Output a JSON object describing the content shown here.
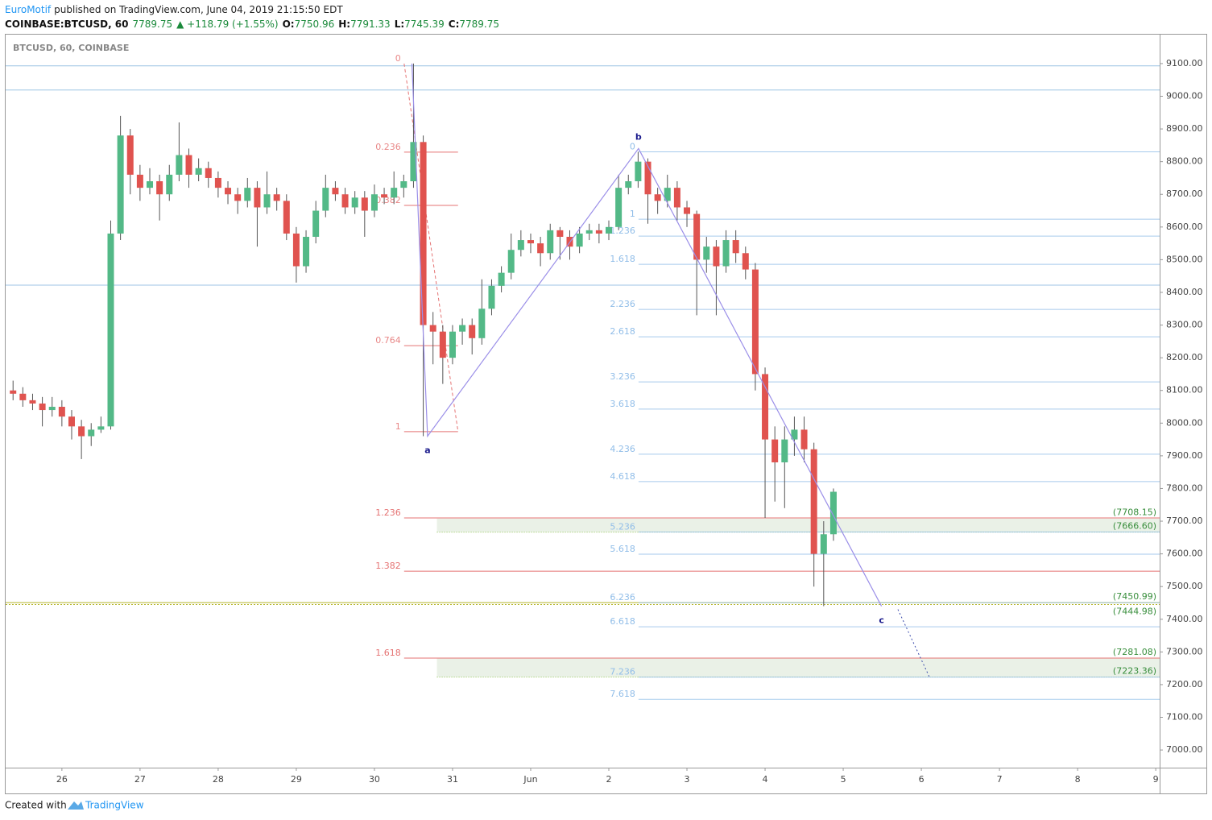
{
  "header": {
    "author": "EuroMotif",
    "published": "published on TradingView.com, June 04, 2019 21:15:50 EDT",
    "symbol": "COINBASE:BTCUSD, 60",
    "last": "7789.75",
    "change": "▲ +118.79 (+1.55%)",
    "ohlc": [
      {
        "key": "O:",
        "value": "7750.96"
      },
      {
        "key": "H:",
        "value": "7791.33"
      },
      {
        "key": "L:",
        "value": "7745.39"
      },
      {
        "key": "C:",
        "value": "7789.75"
      }
    ]
  },
  "footer": {
    "created": "Created with",
    "brand": "TradingView"
  },
  "chart_data": {
    "type": "candlestick",
    "legend": "BTCUSD, 60, COINBASE",
    "up_color": "#53b987",
    "down_color": "#e0534f",
    "xlim": [
      25.28,
      40.05
    ],
    "ylim": [
      6946,
      9191
    ],
    "xticks": [
      26,
      27,
      28,
      29,
      30,
      31,
      {
        "value": 32,
        "label": "Jun"
      },
      {
        "value": 33,
        "label": "2"
      },
      {
        "value": 34,
        "label": "3"
      },
      {
        "value": 35,
        "label": "4"
      },
      {
        "value": 36,
        "label": "5"
      },
      {
        "value": 37,
        "label": "6"
      },
      {
        "value": 38,
        "label": "7"
      },
      {
        "value": 39,
        "label": "8"
      },
      {
        "value": 40,
        "label": "9"
      }
    ],
    "yticks": [
      {
        "value": 7000,
        "label": "7000.00"
      },
      {
        "value": 7100,
        "label": "7100.00"
      },
      {
        "value": 7200,
        "label": "7200.00"
      },
      {
        "value": 7300,
        "label": "7300.00"
      },
      {
        "value": 7400,
        "label": "7400.00"
      },
      {
        "value": 7500,
        "label": "7500.00"
      },
      {
        "value": 7600,
        "label": "7600.00"
      },
      {
        "value": 7700,
        "label": "7700.00"
      },
      {
        "value": 7800,
        "label": "7800.00"
      },
      {
        "value": 7900,
        "label": "7900.00"
      },
      {
        "value": 8000,
        "label": "8000.00"
      },
      {
        "value": 8100,
        "label": "8100.00"
      },
      {
        "value": 8200,
        "label": "8200.00"
      },
      {
        "value": 8300,
        "label": "8300.00"
      },
      {
        "value": 8400,
        "label": "8400.00"
      },
      {
        "value": 8500,
        "label": "8500.00"
      },
      {
        "value": 8600,
        "label": "8600.00"
      },
      {
        "value": 8700,
        "label": "8700.00"
      },
      {
        "value": 8800,
        "label": "8800.00"
      },
      {
        "value": 8900,
        "label": "8900.00"
      },
      {
        "value": 9000,
        "label": "9000.00"
      },
      {
        "value": 9100,
        "label": "9100.00"
      }
    ],
    "grid": false,
    "x": [
      25.375,
      25.5,
      25.625,
      25.75,
      25.875,
      26.0,
      26.125,
      26.25,
      26.375,
      26.5,
      26.625,
      26.75,
      26.875,
      27.0,
      27.125,
      27.25,
      27.375,
      27.5,
      27.625,
      27.75,
      27.875,
      28.0,
      28.125,
      28.25,
      28.375,
      28.5,
      28.625,
      28.75,
      28.875,
      29.0,
      29.125,
      29.25,
      29.375,
      29.5,
      29.625,
      29.75,
      29.875,
      30.0,
      30.125,
      30.25,
      30.375,
      30.5,
      30.625,
      30.75,
      30.875,
      31.0,
      31.125,
      31.25,
      31.375,
      31.5,
      31.625,
      31.75,
      31.875,
      32.0,
      32.125,
      32.25,
      32.375,
      32.5,
      32.625,
      32.75,
      32.875,
      33.0,
      33.125,
      33.25,
      33.375,
      33.5,
      33.625,
      33.75,
      33.875,
      34.0,
      34.125,
      34.25,
      34.375,
      34.5,
      34.625,
      34.75,
      34.875,
      35.0,
      35.125,
      35.25,
      35.375,
      35.5,
      35.625,
      35.75,
      35.875
    ],
    "candles": [
      [
        8100,
        8130,
        8070,
        8090
      ],
      [
        8090,
        8110,
        8050,
        8070
      ],
      [
        8070,
        8090,
        8040,
        8060
      ],
      [
        8060,
        8080,
        7990,
        8040
      ],
      [
        8040,
        8080,
        8020,
        8050
      ],
      [
        8050,
        8070,
        7990,
        8020
      ],
      [
        8020,
        8040,
        7950,
        7990
      ],
      [
        7990,
        8010,
        7890,
        7960
      ],
      [
        7960,
        8000,
        7930,
        7980
      ],
      [
        7980,
        8020,
        7970,
        7990
      ],
      [
        7990,
        8620,
        7980,
        8580
      ],
      [
        8580,
        8940,
        8560,
        8880
      ],
      [
        8880,
        8900,
        8700,
        8760
      ],
      [
        8760,
        8790,
        8680,
        8720
      ],
      [
        8720,
        8780,
        8700,
        8740
      ],
      [
        8740,
        8760,
        8620,
        8700
      ],
      [
        8700,
        8790,
        8680,
        8760
      ],
      [
        8760,
        8920,
        8740,
        8820
      ],
      [
        8820,
        8840,
        8720,
        8760
      ],
      [
        8760,
        8810,
        8740,
        8780
      ],
      [
        8780,
        8800,
        8720,
        8750
      ],
      [
        8750,
        8770,
        8690,
        8720
      ],
      [
        8720,
        8740,
        8670,
        8700
      ],
      [
        8700,
        8720,
        8640,
        8680
      ],
      [
        8680,
        8750,
        8660,
        8720
      ],
      [
        8720,
        8740,
        8540,
        8660
      ],
      [
        8660,
        8770,
        8640,
        8700
      ],
      [
        8700,
        8720,
        8650,
        8680
      ],
      [
        8680,
        8700,
        8560,
        8580
      ],
      [
        8580,
        8600,
        8430,
        8480
      ],
      [
        8480,
        8590,
        8460,
        8570
      ],
      [
        8570,
        8680,
        8550,
        8650
      ],
      [
        8650,
        8760,
        8630,
        8720
      ],
      [
        8720,
        8740,
        8680,
        8700
      ],
      [
        8700,
        8720,
        8640,
        8660
      ],
      [
        8660,
        8710,
        8640,
        8690
      ],
      [
        8690,
        8710,
        8570,
        8650
      ],
      [
        8650,
        8730,
        8630,
        8700
      ],
      [
        8700,
        8720,
        8670,
        8690
      ],
      [
        8690,
        8770,
        8670,
        8720
      ],
      [
        8720,
        8760,
        8690,
        8740
      ],
      [
        8740,
        9100,
        8720,
        8860
      ],
      [
        8860,
        8880,
        7960,
        8300
      ],
      [
        8300,
        8340,
        8180,
        8280
      ],
      [
        8280,
        8300,
        8120,
        8200
      ],
      [
        8200,
        8300,
        8180,
        8280
      ],
      [
        8280,
        8320,
        8240,
        8300
      ],
      [
        8300,
        8320,
        8210,
        8260
      ],
      [
        8260,
        8440,
        8240,
        8350
      ],
      [
        8350,
        8440,
        8330,
        8420
      ],
      [
        8420,
        8480,
        8400,
        8460
      ],
      [
        8460,
        8580,
        8440,
        8530
      ],
      [
        8530,
        8590,
        8510,
        8560
      ],
      [
        8560,
        8580,
        8520,
        8550
      ],
      [
        8550,
        8570,
        8480,
        8520
      ],
      [
        8520,
        8610,
        8500,
        8590
      ],
      [
        8590,
        8600,
        8500,
        8570
      ],
      [
        8570,
        8590,
        8500,
        8540
      ],
      [
        8540,
        8600,
        8520,
        8580
      ],
      [
        8580,
        8610,
        8560,
        8590
      ],
      [
        8590,
        8610,
        8550,
        8580
      ],
      [
        8580,
        8620,
        8560,
        8600
      ],
      [
        8600,
        8760,
        8590,
        8720
      ],
      [
        8720,
        8760,
        8700,
        8740
      ],
      [
        8740,
        8830,
        8720,
        8800
      ],
      [
        8800,
        8810,
        8610,
        8700
      ],
      [
        8700,
        8720,
        8640,
        8680
      ],
      [
        8680,
        8760,
        8660,
        8720
      ],
      [
        8720,
        8740,
        8620,
        8660
      ],
      [
        8660,
        8680,
        8600,
        8640
      ],
      [
        8640,
        8650,
        8330,
        8500
      ],
      [
        8500,
        8570,
        8460,
        8540
      ],
      [
        8540,
        8560,
        8330,
        8480
      ],
      [
        8480,
        8590,
        8460,
        8560
      ],
      [
        8560,
        8590,
        8490,
        8520
      ],
      [
        8520,
        8540,
        8440,
        8470
      ],
      [
        8470,
        8490,
        8100,
        8150
      ],
      [
        8150,
        8170,
        7710,
        7950
      ],
      [
        7950,
        7990,
        7760,
        7880
      ],
      [
        7880,
        7990,
        7740,
        7950
      ],
      [
        7950,
        8020,
        7900,
        7980
      ],
      [
        7980,
        8020,
        7880,
        7920
      ],
      [
        7920,
        7940,
        7500,
        7600
      ],
      [
        7600,
        7700,
        7440,
        7660
      ],
      [
        7660,
        7800,
        7640,
        7790
      ]
    ],
    "fib_retracement": {
      "color": "#e57373",
      "levels": [
        {
          "label": "0",
          "value": 9100
        },
        {
          "label": "0.236",
          "value": 8829
        },
        {
          "label": "0.382",
          "value": 8666
        },
        {
          "label": "0.764",
          "value": 8237
        },
        {
          "label": "1",
          "value": 7974
        },
        {
          "label": "1.236",
          "value": 7710
        },
        {
          "label": "1.382",
          "value": 7547
        },
        {
          "label": "1.618",
          "value": 7281
        }
      ]
    },
    "fib_extension": {
      "color": "#90bde8",
      "levels": [
        {
          "label": "0",
          "value": 8830
        },
        {
          "label": "1",
          "value": 8624
        },
        {
          "label": "1.236",
          "value": 8572
        },
        {
          "label": "1.618",
          "value": 8486
        },
        {
          "label": "2.236",
          "value": 8348
        },
        {
          "label": "2.618",
          "value": 8264
        },
        {
          "label": "3.236",
          "value": 8126
        },
        {
          "label": "3.618",
          "value": 8043
        },
        {
          "label": "4.236",
          "value": 7905
        },
        {
          "label": "4.618",
          "value": 7821
        },
        {
          "label": "5.236",
          "value": 7667
        },
        {
          "label": "5.618",
          "value": 7599
        },
        {
          "label": "6.236",
          "value": 7451
        },
        {
          "label": "6.618",
          "value": 7377
        },
        {
          "label": "7.236",
          "value": 7223
        },
        {
          "label": "7.618",
          "value": 7155
        }
      ]
    },
    "horizontal_lines": [
      9093,
      9019,
      8422
    ],
    "price_labels": [
      {
        "value": 7708.15,
        "label": "(7708.15)"
      },
      {
        "value": 7666.6,
        "label": "(7666.60)"
      },
      {
        "value": 7450.99,
        "label": "(7450.99)"
      },
      {
        "value": 7444.98,
        "label": "(7444.98)"
      },
      {
        "value": 7281.08,
        "label": "(7281.08)"
      },
      {
        "value": 7223.36,
        "label": "(7223.36)"
      }
    ],
    "wave_start": {
      "x": 30.48,
      "y": 9100
    },
    "waves": [
      {
        "label": "a",
        "x": 30.68,
        "y": 7960
      },
      {
        "label": "b",
        "x": 33.38,
        "y": 8840
      },
      {
        "label": "c",
        "x": 36.49,
        "y": 7440
      }
    ],
    "projection": {
      "x": [
        36.7,
        37.1
      ],
      "y": [
        7430,
        7225
      ]
    }
  }
}
